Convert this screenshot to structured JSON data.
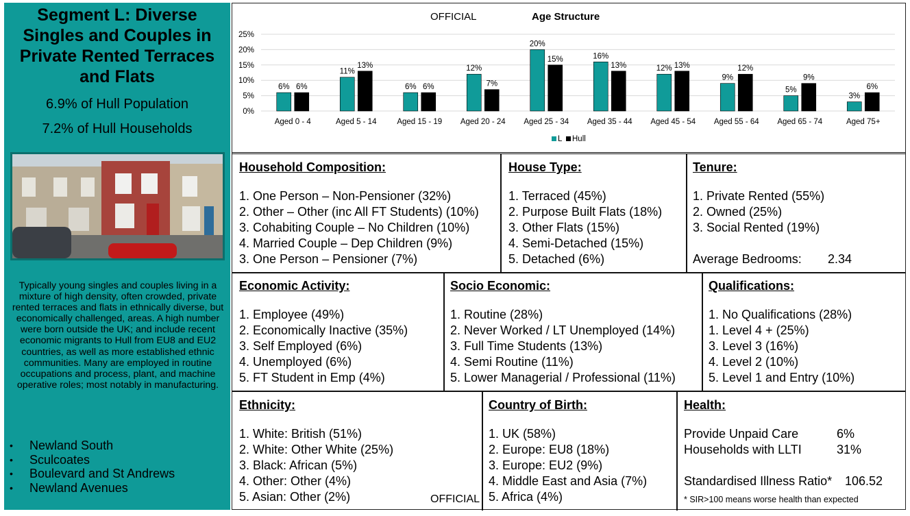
{
  "segment": {
    "title": "Segment L: Diverse Singles and Couples in Private Rented Terraces and Flats",
    "population": "6.9% of Hull Population",
    "households": "7.2% of Hull Households",
    "summary": "Typically young singles and couples living in a mixture of high density, often crowded, private rented terraces and flats in ethnically diverse, but economically challenged, areas. A high number were born outside the UK; and include recent economic migrants to Hull from EU8 and EU2 countries, as well as more established ethnic communities. Many are employed in routine occupations and process, plant, and machine operative roles; most notably in manufacturing.",
    "wards": [
      "Newland South",
      "Sculcoates",
      "Boulevard and St Andrews",
      "Newland Avenues"
    ]
  },
  "marking": "OFFICIAL",
  "colors": {
    "teal": "#0f9a98",
    "l_bar": "#109b99",
    "hull_bar": "#000000"
  },
  "chart_data": {
    "type": "bar",
    "title": "Age Structure",
    "categories": [
      "Aged 0 - 4",
      "Aged 5 - 14",
      "Aged 15 - 19",
      "Aged 20 - 24",
      "Aged 25 - 34",
      "Aged 35 - 44",
      "Aged 45 - 54",
      "Aged 55 - 64",
      "Aged 65 - 74",
      "Aged 75+"
    ],
    "series": [
      {
        "name": "L",
        "values": [
          6,
          11,
          6,
          12,
          20,
          16,
          12,
          9,
          5,
          3
        ],
        "labels": [
          "6%",
          "11%",
          "6%",
          "12%",
          "20%",
          "16%",
          "12%",
          "9%",
          "5%",
          "3%"
        ]
      },
      {
        "name": "Hull",
        "values": [
          6,
          13,
          6,
          7,
          15,
          13,
          13,
          12,
          9,
          6
        ],
        "labels": [
          "6%",
          "13%",
          "6%",
          "7%",
          "15%",
          "13%",
          "13%",
          "12%",
          "9%",
          "6%"
        ]
      }
    ],
    "ylim": [
      0,
      25
    ],
    "yticks": [
      "0%",
      "5%",
      "10%",
      "15%",
      "20%",
      "25%"
    ],
    "grid": true,
    "legend": "bottom-center"
  },
  "household": {
    "heading": "Household Composition:",
    "items": [
      "1. One Person – Non-Pensioner (32%)",
      "2. Other – Other (inc All FT Students) (10%)",
      "3. Cohabiting Couple – No Children (10%)",
      "4. Married Couple – Dep Children (9%)",
      "3. One Person – Pensioner (7%)"
    ]
  },
  "house_type": {
    "heading": "House Type:",
    "items": [
      "1. Terraced (45%)",
      "2. Purpose Built Flats (18%)",
      "3. Other Flats (15%)",
      "4. Semi-Detached (15%)",
      "5. Detached (6%)"
    ]
  },
  "tenure": {
    "heading": "Tenure:",
    "items": [
      "1. Private Rented (55%)",
      "2. Owned (25%)",
      "3. Social Rented (19%)"
    ],
    "bedrooms_label": "Average Bedrooms:",
    "bedrooms_value": "2.34"
  },
  "economic": {
    "heading": "Economic Activity:",
    "items": [
      "1. Employee (49%)",
      "2. Economically Inactive (35%)",
      "3. Self Employed (6%)",
      "4. Unemployed (6%)",
      "5. FT Student in Emp (4%)"
    ]
  },
  "socio": {
    "heading": "Socio Economic:",
    "items": [
      "1. Routine (28%)",
      "2. Never Worked / LT Unemployed (14%)",
      "3. Full Time Students (13%)",
      "4. Semi Routine (11%)",
      "5. Lower Managerial / Professional (11%)"
    ]
  },
  "qualifications": {
    "heading": "Qualifications:",
    "items": [
      "1. No Qualifications (28%)",
      "1. Level 4 + (25%)",
      "3. Level 3 (16%)",
      "4. Level 2 (10%)",
      "5. Level 1 and Entry (10%)"
    ]
  },
  "ethnicity": {
    "heading": "Ethnicity:",
    "items": [
      "1. White: British (51%)",
      "2. White: Other White (25%)",
      "3. Black: African (5%)",
      "4. Other: Other (4%)",
      "5. Asian: Other (2%)"
    ]
  },
  "birth": {
    "heading": "Country of Birth:",
    "items": [
      "1. UK (58%)",
      "2. Europe: EU8 (18%)",
      "3. Europe: EU2 (9%)",
      "4. Middle East and Asia (7%)",
      "5. Africa (4%)"
    ]
  },
  "health": {
    "heading": "Health:",
    "care_label": "Provide Unpaid Care",
    "care_value": "6%",
    "llti_label": "Households with LLTI",
    "llti_value": "31%",
    "sir_label": "Standardised Illness Ratio*",
    "sir_value": "106.52",
    "note": "* SIR>100 means worse health than expected"
  }
}
